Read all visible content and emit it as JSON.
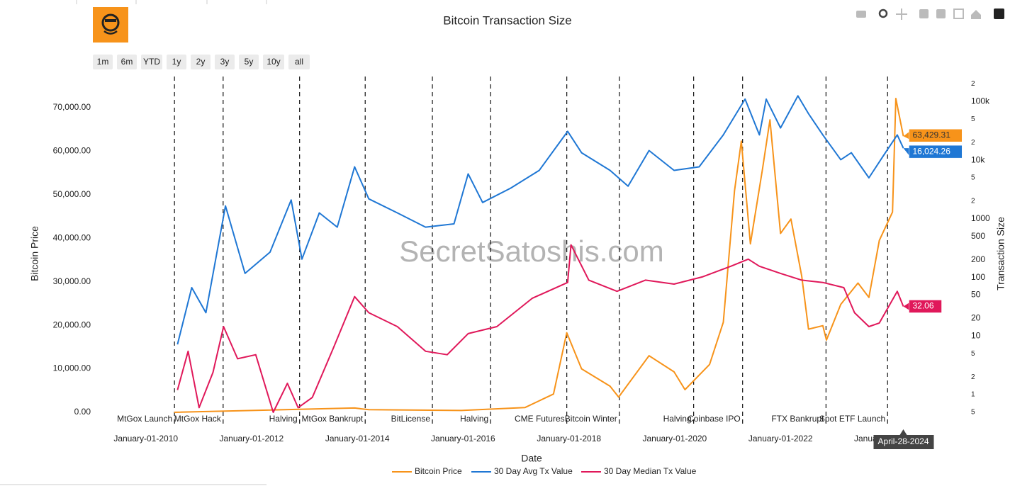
{
  "chart_data": {
    "type": "line",
    "title": "Bitcoin Transaction Size",
    "watermark": "SecretSatoshis.com",
    "range_buttons": [
      "1m",
      "6m",
      "YTD",
      "1y",
      "2y",
      "3y",
      "5y",
      "10y",
      "all"
    ],
    "x_label": "Date",
    "y_label": "Bitcoin Price",
    "y2_label": "Transaction Size",
    "xlim": [
      "2009-01-20",
      "2025-07-15"
    ],
    "xticks": [
      {
        "value": "2010-01-01",
        "label": "January-01-2010"
      },
      {
        "value": "2012-01-01",
        "label": "January-01-2012"
      },
      {
        "value": "2014-01-01",
        "label": "January-01-2014"
      },
      {
        "value": "2016-01-01",
        "label": "January-01-2016"
      },
      {
        "value": "2018-01-01",
        "label": "January-01-2018"
      },
      {
        "value": "2020-01-01",
        "label": "January-01-2020"
      },
      {
        "value": "2022-01-01",
        "label": "January-01-2022"
      },
      {
        "value": "2024-01-01",
        "label": "January-01-2024"
      }
    ],
    "ylim": [
      0,
      76000
    ],
    "yticks": [
      {
        "value": 0,
        "label": "0.00"
      },
      {
        "value": 10000,
        "label": "10,000.00"
      },
      {
        "value": 20000,
        "label": "20,000.00"
      },
      {
        "value": 30000,
        "label": "30,000.00"
      },
      {
        "value": 40000,
        "label": "40,000.00"
      },
      {
        "value": 50000,
        "label": "50,000.00"
      },
      {
        "value": 60000,
        "label": "60,000.00"
      },
      {
        "value": 70000,
        "label": "70,000.00"
      }
    ],
    "y2_log": true,
    "y2lim": [
      0.5,
      220000
    ],
    "y2ticks": [
      {
        "value": 0.5,
        "label": "5"
      },
      1,
      2,
      5,
      10,
      20,
      50,
      100,
      200,
      500,
      1000,
      {
        "value": 2000,
        "label": "2"
      },
      {
        "value": 5000,
        "label": "5"
      },
      {
        "value": 10000,
        "label": "10k"
      },
      {
        "value": 20000,
        "label": "2"
      },
      {
        "value": 50000,
        "label": "5"
      },
      {
        "value": 100000,
        "label": "100k"
      },
      {
        "value": 200000,
        "label": "2"
      }
    ],
    "events": [
      {
        "x": "2010-07-18",
        "text": "MtGox Launch"
      },
      {
        "x": "2011-06-19",
        "text": "MtGox Hack"
      },
      {
        "x": "2012-11-28",
        "text": "Halving"
      },
      {
        "x": "2014-02-24",
        "text": "MtGox Bankrupt"
      },
      {
        "x": "2015-06-03",
        "text": "BitLicense"
      },
      {
        "x": "2016-07-09",
        "text": "Halving"
      },
      {
        "x": "2017-12-17",
        "text": "CME Futures"
      },
      {
        "x": "2018-12-15",
        "text": "Bitcoin Winter"
      },
      {
        "x": "2020-05-11",
        "text": "Halving"
      },
      {
        "x": "2021-04-14",
        "text": "Coinbase IPO"
      },
      {
        "x": "2022-11-11",
        "text": "FTX Bankrupt"
      },
      {
        "x": "2024-01-10",
        "text": "Spot ETF Launch"
      }
    ],
    "hover_x": {
      "value": "2024-04-28",
      "label": "April-28-2024"
    },
    "series": [
      {
        "name": "Bitcoin Price",
        "color": "#f7931a",
        "axis": "y",
        "hover_label": "63,429.31",
        "hover_text_color": "#333333",
        "x": [
          "2010-07-17",
          "2013-12-13",
          "2014-03-21",
          "2015-12-20",
          "2017-03-04",
          "2017-09-16",
          "2017-12-17",
          "2018-03-29",
          "2018-10-12",
          "2018-12-10",
          "2019-07-08",
          "2019-12-28",
          "2020-03-12",
          "2020-08-29",
          "2020-12-02",
          "2021-02-17",
          "2021-04-05",
          "2021-06-07",
          "2021-08-29",
          "2021-10-20",
          "2022-01-01",
          "2022-03-14",
          "2022-05-27",
          "2022-07-13",
          "2022-10-20",
          "2022-11-14",
          "2023-02-21",
          "2023-06-20",
          "2023-09-03",
          "2023-11-14",
          "2024-02-13",
          "2024-03-07",
          "2024-04-28"
        ],
        "values": [
          0,
          1000,
          600,
          430,
          1100,
          4200,
          18300,
          10000,
          6000,
          3500,
          13000,
          9300,
          5200,
          11000,
          20700,
          50900,
          62300,
          38700,
          55800,
          67200,
          41100,
          44400,
          31300,
          19100,
          19900,
          16600,
          24800,
          29700,
          26400,
          39500,
          46000,
          72100,
          63429.31
        ]
      },
      {
        "name": "30 Day Avg Tx Value",
        "color": "#1f77d4",
        "axis": "y2",
        "hover_label": "16,024.26",
        "hover_text_color": "#ffffff",
        "x": [
          "2010-08-08",
          "2010-11-14",
          "2011-02-20",
          "2011-07-05",
          "2011-11-17",
          "2012-05-08",
          "2012-10-01",
          "2012-12-14",
          "2013-04-13",
          "2013-08-15",
          "2013-12-13",
          "2014-03-21",
          "2014-10-04",
          "2015-04-17",
          "2015-10-30",
          "2016-02-05",
          "2016-05-15",
          "2016-11-24",
          "2017-06-10",
          "2017-12-23",
          "2018-03-29",
          "2018-10-12",
          "2019-02-13",
          "2019-07-08",
          "2019-12-28",
          "2020-06-18",
          "2020-12-02",
          "2021-05-01",
          "2021-08-08",
          "2021-09-24",
          "2022-01-01",
          "2022-05-01",
          "2022-07-13",
          "2022-10-20",
          "2023-02-21",
          "2023-05-05",
          "2023-09-03",
          "2023-12-10",
          "2024-03-17",
          "2024-04-28"
        ],
        "values": [
          7.2,
          67,
          25,
          1660,
          117,
          270,
          2090,
          205,
          1260,
          720,
          7700,
          2190,
          1260,
          720,
          820,
          5850,
          1900,
          3330,
          6700,
          31000,
          13400,
          6700,
          3600,
          14600,
          6700,
          7700,
          27000,
          110000,
          27000,
          110000,
          35500,
          125000,
          62000,
          27000,
          10200,
          13400,
          5000,
          11700,
          27000,
          16024.26
        ]
      },
      {
        "name": "30 Day Median Tx Value",
        "color": "#e0185a",
        "axis": "y2",
        "hover_label": "32.06",
        "hover_text_color": "#ffffff",
        "x": [
          "2010-08-08",
          "2010-10-20",
          "2011-01-04",
          "2011-04-10",
          "2011-06-22",
          "2011-09-27",
          "2012-01-30",
          "2012-05-30",
          "2012-09-05",
          "2012-11-18",
          "2013-02-24",
          "2013-07-20",
          "2013-12-13",
          "2014-03-21",
          "2014-10-04",
          "2015-04-17",
          "2015-09-13",
          "2016-02-05",
          "2016-08-21",
          "2017-04-22",
          "2017-12-23",
          "2018-01-15",
          "2018-05-18",
          "2018-11-29",
          "2019-06-13",
          "2019-12-28",
          "2020-07-09",
          "2021-01-23",
          "2021-05-23",
          "2021-08-08",
          "2022-01-01",
          "2022-05-27",
          "2022-10-20",
          "2023-03-14",
          "2023-05-27",
          "2023-09-03",
          "2023-11-14",
          "2024-03-17",
          "2024-04-28"
        ],
        "values": [
          1.2,
          5.5,
          0.6,
          2.4,
          14.5,
          4.1,
          4.8,
          0.5,
          1.56,
          0.6,
          0.9,
          6.3,
          47,
          25,
          14.5,
          5.5,
          4.8,
          11,
          14.5,
          44,
          82,
          360,
          90,
          58,
          90,
          77,
          102,
          155,
          205,
          155,
          117,
          90,
          82,
          67,
          25,
          14.5,
          16.7,
          58,
          32.06
        ]
      }
    ]
  }
}
